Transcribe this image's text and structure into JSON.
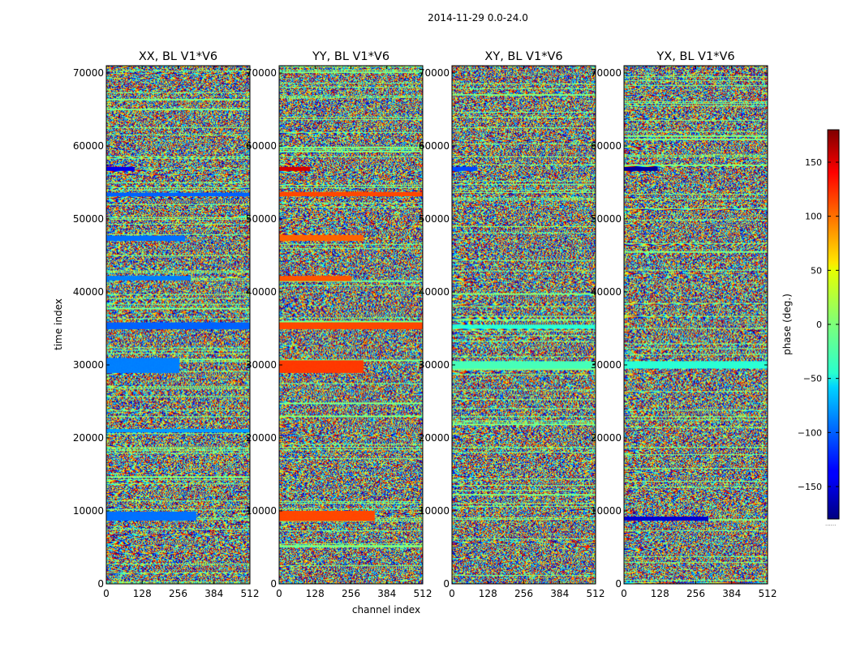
{
  "chart_data": {
    "type": "heatmap",
    "title": "2014-11-29 0.0-24.0",
    "xlabel": "channel index",
    "ylabel": "time index",
    "xlim": [
      0,
      512
    ],
    "ylim": [
      0,
      71000
    ],
    "xticks": [
      0,
      128,
      256,
      384,
      512
    ],
    "yticks": [
      0,
      10000,
      20000,
      30000,
      40000,
      50000,
      60000,
      70000
    ],
    "colormap": "jet",
    "colorbar": {
      "label": "phase (deg.)",
      "range": [
        -180,
        180
      ],
      "ticks": [
        -150,
        -100,
        -50,
        0,
        50,
        100,
        150
      ],
      "tick_labels": [
        "−150",
        "−100",
        "−50",
        "0",
        "50",
        "100",
        "150"
      ],
      "footer": "......"
    },
    "panels": [
      {
        "title": "XX, BL V1*V6",
        "bands": [
          {
            "t0": 8700,
            "t1": 9900,
            "c1": 320,
            "phase": -95
          },
          {
            "t0": 20800,
            "t1": 21200,
            "c1": 512,
            "phase": -80
          },
          {
            "t0": 28900,
            "t1": 30900,
            "c1": 260,
            "phase": -90
          },
          {
            "t0": 34900,
            "t1": 35800,
            "c1": 512,
            "phase": -100
          },
          {
            "t0": 41600,
            "t1": 42200,
            "c1": 300,
            "phase": -90
          },
          {
            "t0": 47000,
            "t1": 47700,
            "c1": 280,
            "phase": -95
          },
          {
            "t0": 53100,
            "t1": 53600,
            "c1": 512,
            "phase": -100
          },
          {
            "t0": 56600,
            "t1": 57100,
            "c1": 100,
            "phase": -140
          }
        ]
      },
      {
        "title": "YY, BL V1*V6",
        "bands": [
          {
            "t0": 8600,
            "t1": 10000,
            "c1": 340,
            "phase": 110
          },
          {
            "t0": 28900,
            "t1": 30600,
            "c1": 300,
            "phase": 115
          },
          {
            "t0": 34900,
            "t1": 35800,
            "c1": 512,
            "phase": 110
          },
          {
            "t0": 41500,
            "t1": 42200,
            "c1": 256,
            "phase": 105
          },
          {
            "t0": 47000,
            "t1": 47800,
            "c1": 300,
            "phase": 100
          },
          {
            "t0": 53100,
            "t1": 53700,
            "c1": 512,
            "phase": 110
          },
          {
            "t0": 56600,
            "t1": 57100,
            "c1": 110,
            "phase": 150
          }
        ]
      },
      {
        "title": "XY, BL V1*V6",
        "bands": [
          {
            "t0": 29500,
            "t1": 30500,
            "c1": 512,
            "phase": -20
          },
          {
            "t0": 35000,
            "t1": 35500,
            "c1": 512,
            "phase": -30
          },
          {
            "t0": 56600,
            "t1": 57100,
            "c1": 90,
            "phase": -110
          }
        ]
      },
      {
        "title": "YX, BL V1*V6",
        "bands": [
          {
            "t0": 8700,
            "t1": 9200,
            "c1": 300,
            "phase": -150
          },
          {
            "t0": 29500,
            "t1": 30500,
            "c1": 512,
            "phase": -30
          },
          {
            "t0": 56600,
            "t1": 57100,
            "c1": 120,
            "phase": -170
          }
        ]
      }
    ]
  }
}
